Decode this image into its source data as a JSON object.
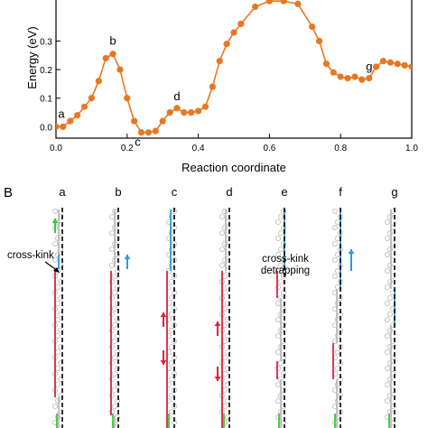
{
  "chart_data": {
    "type": "line",
    "xlabel": "Reaction coordinate",
    "ylabel": "Energy (eV)",
    "xlim": [
      0.0,
      1.0
    ],
    "ylim": [
      -0.04,
      0.45
    ],
    "x_ticks": [
      "0.0",
      "0.2",
      "0.4",
      "0.6",
      "0.8",
      "1.0"
    ],
    "y_ticks": [
      "0.0",
      "0.1",
      "0.2",
      "0.3"
    ],
    "grid": false,
    "color": "#E87722",
    "series": [
      {
        "x": [
          0.0,
          0.02,
          0.04,
          0.06,
          0.08,
          0.1,
          0.12,
          0.14,
          0.16,
          0.18,
          0.2,
          0.22,
          0.24,
          0.26,
          0.28,
          0.3,
          0.32,
          0.34,
          0.36,
          0.38,
          0.4,
          0.42,
          0.44,
          0.46,
          0.48,
          0.5,
          0.52,
          0.56,
          0.6,
          0.64,
          0.68,
          0.72,
          0.74,
          0.76,
          0.78,
          0.8,
          0.82,
          0.84,
          0.86,
          0.88,
          0.9,
          0.92,
          0.94,
          0.96,
          0.98,
          1.0
        ],
        "values": [
          0.0,
          0.0,
          0.02,
          0.04,
          0.07,
          0.1,
          0.16,
          0.24,
          0.255,
          0.2,
          0.1,
          0.02,
          -0.02,
          -0.02,
          -0.015,
          0.02,
          0.05,
          0.065,
          0.05,
          0.05,
          0.055,
          0.07,
          0.14,
          0.23,
          0.29,
          0.33,
          0.36,
          0.42,
          0.44,
          0.44,
          0.43,
          0.35,
          0.3,
          0.22,
          0.19,
          0.175,
          0.17,
          0.175,
          0.165,
          0.17,
          0.21,
          0.23,
          0.225,
          0.22,
          0.215,
          0.21
        ]
      }
    ],
    "annotations": [
      {
        "label": "a",
        "x": 0.0,
        "y": 0.0
      },
      {
        "label": "b",
        "x": 0.16,
        "y": 0.255
      },
      {
        "label": "c",
        "x": 0.24,
        "y": -0.02
      },
      {
        "label": "d",
        "x": 0.34,
        "y": 0.065
      },
      {
        "label": "g",
        "x": 0.86,
        "y": 0.165
      }
    ]
  },
  "panel_b": {
    "letter": "B",
    "frames": [
      {
        "label": "a"
      },
      {
        "label": "b"
      },
      {
        "label": "c"
      },
      {
        "label": "d"
      },
      {
        "label": "e"
      },
      {
        "label": "f"
      },
      {
        "label": "g"
      }
    ],
    "annotations": {
      "cross_kink": "cross-kink",
      "detrapping_line1": "cross-kink",
      "detrapping_line2": "detrapping"
    },
    "colors": {
      "red": "#D7263D",
      "blue": "#2E9BD6",
      "green": "#33CC33",
      "gray": "#BBBBBB",
      "dash": "#000000"
    }
  }
}
